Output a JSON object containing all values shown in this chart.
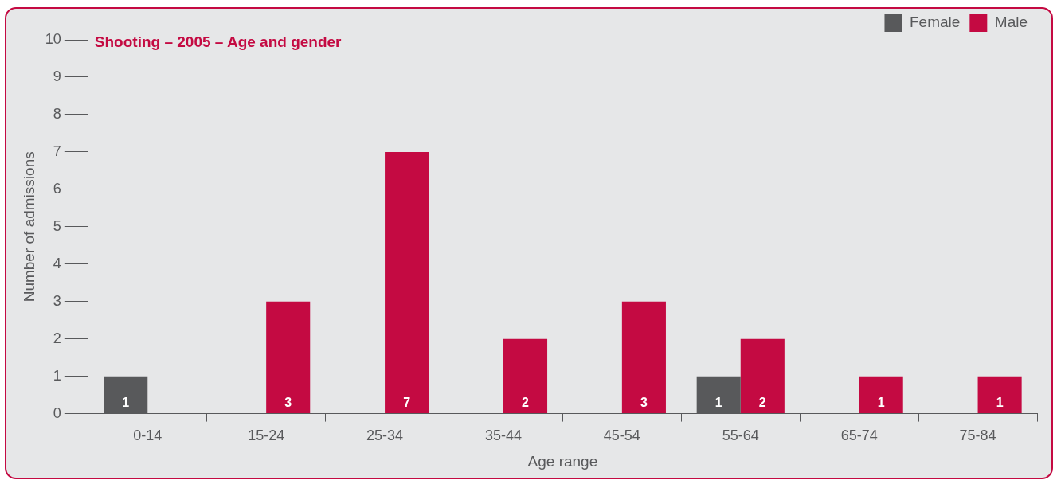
{
  "chart_data": {
    "type": "bar",
    "title": "Shooting – 2005 – Age and gender",
    "xlabel": "Age range",
    "ylabel": "Number of admissions",
    "categories": [
      "0-14",
      "15-24",
      "25-34",
      "35-44",
      "45-54",
      "55-64",
      "65-74",
      "75-84"
    ],
    "series": [
      {
        "name": "Female",
        "color": "#58595b",
        "values": [
          1,
          null,
          null,
          null,
          null,
          1,
          null,
          null
        ]
      },
      {
        "name": "Male",
        "color": "#c40a42",
        "values": [
          null,
          3,
          7,
          2,
          3,
          2,
          1,
          1
        ]
      }
    ],
    "ylim": [
      0,
      10
    ],
    "yticks": [
      0,
      1,
      2,
      3,
      4,
      5,
      6,
      7,
      8,
      9,
      10
    ],
    "grid": false,
    "legend": "top right",
    "data_labels": true
  }
}
